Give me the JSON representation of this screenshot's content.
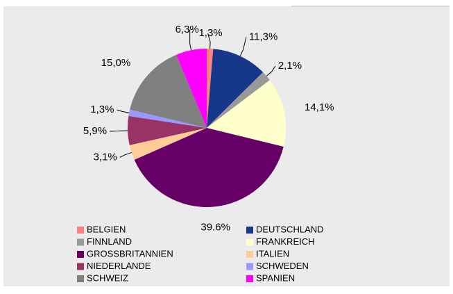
{
  "chart_data": {
    "type": "pie",
    "categories": [
      "BELGIEN",
      "DEUTSCHLAND",
      "FINNLAND",
      "FRANKREICH",
      "GROSSBRITANNIEN",
      "ITALIEN",
      "NIEDERLANDE",
      "SCHWEDEN",
      "SCHWEIZ",
      "SPANIEN"
    ],
    "values": [
      1.3,
      11.3,
      2.1,
      14.1,
      39.6,
      3.1,
      5.9,
      1.3,
      15.0,
      6.3
    ],
    "value_labels": [
      "1,3%",
      "11,3%",
      "2,1%",
      "14,1%",
      "39.6%",
      "3,1%",
      "5,9%",
      "1,3%",
      "15,0%",
      "6,3%"
    ],
    "colors": [
      "#ff8080",
      "#17378a",
      "#999999",
      "#ffffcc",
      "#660066",
      "#ffcc99",
      "#993366",
      "#9999ff",
      "#808080",
      "#ff00ff"
    ],
    "legend": "bottom"
  }
}
